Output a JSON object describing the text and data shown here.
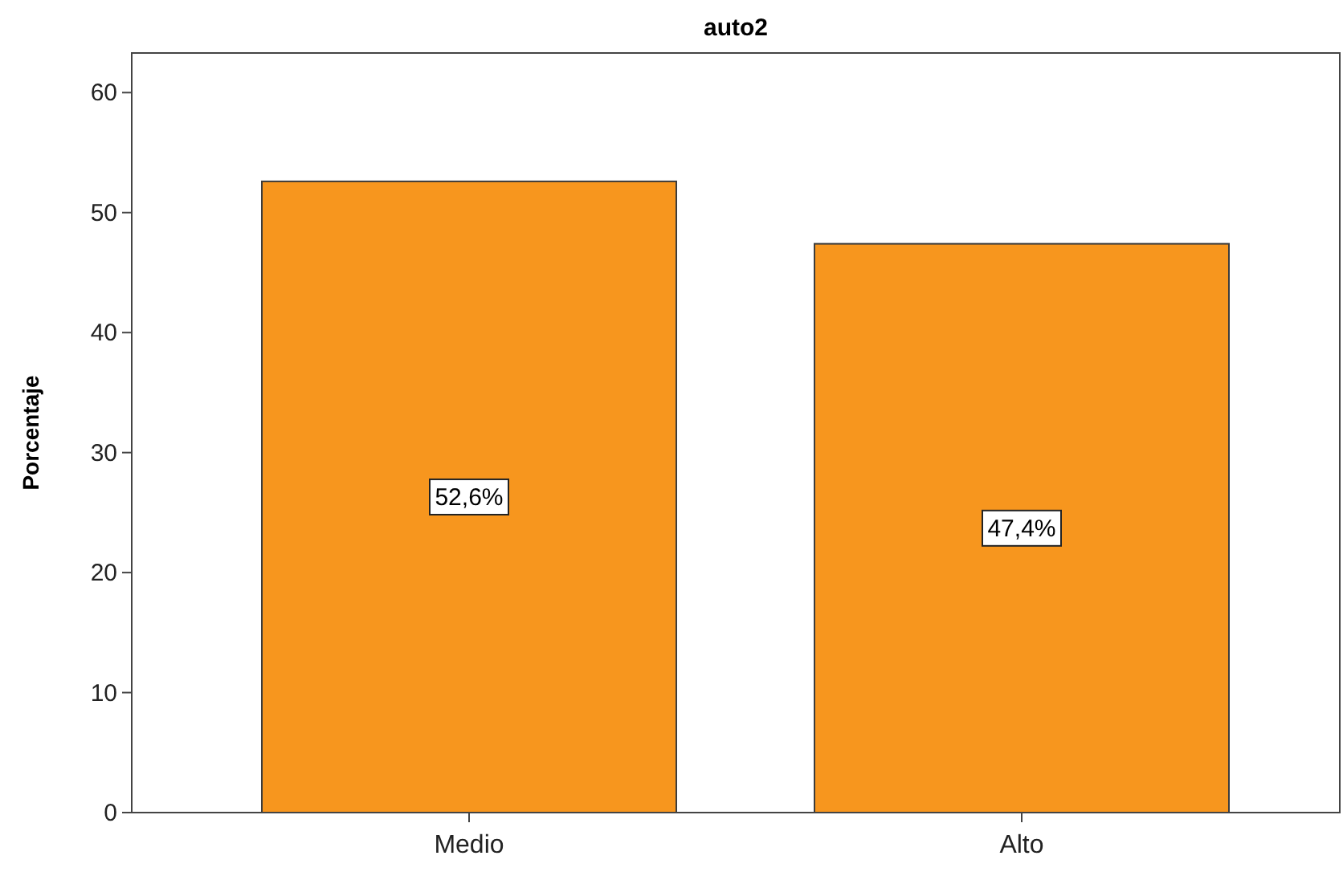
{
  "chart_data": {
    "type": "bar",
    "title": "auto2",
    "ylabel": "Porcentaje",
    "categories": [
      "Medio",
      "Alto"
    ],
    "values": [
      52.6,
      47.4
    ],
    "color": "#f7961e",
    "value_labels": [
      "52,6%",
      "47,4%"
    ],
    "ylim": [
      0,
      63.3
    ],
    "yticks": [
      0,
      10,
      20,
      30,
      40,
      50,
      60
    ],
    "grid": false
  }
}
